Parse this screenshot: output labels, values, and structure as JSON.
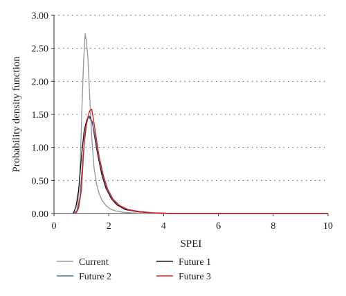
{
  "chart_data": {
    "type": "line",
    "xlabel": "SPEI",
    "ylabel": "Probability density function",
    "xlim": [
      0,
      10
    ],
    "ylim": [
      0,
      3.0
    ],
    "x_ticks": [
      "0",
      "2",
      "4",
      "6",
      "8",
      "10"
    ],
    "y_ticks": [
      "0.00",
      "0.50",
      "1.00",
      "1.50",
      "2.00",
      "2.50",
      "3.00"
    ],
    "grid": "horizontal dotted",
    "legend_position": "bottom",
    "series": [
      {
        "name": "Current",
        "color": "#9a9a9a",
        "x": [
          0.7,
          0.85,
          0.95,
          1.02,
          1.08,
          1.14,
          1.18,
          1.24,
          1.3,
          1.38,
          1.46,
          1.55,
          1.65,
          1.75,
          1.9,
          2.05,
          2.25,
          2.5,
          2.8,
          3.2,
          4.0,
          10.0
        ],
        "y": [
          0.0,
          0.05,
          0.6,
          1.6,
          2.3,
          2.72,
          2.62,
          2.35,
          1.8,
          1.15,
          0.7,
          0.45,
          0.3,
          0.2,
          0.12,
          0.07,
          0.04,
          0.02,
          0.01,
          0.005,
          0.0,
          0.0
        ]
      },
      {
        "name": "Future 1",
        "color": "#1a1a1a",
        "x": [
          0.7,
          0.8,
          0.9,
          1.0,
          1.1,
          1.2,
          1.3,
          1.4,
          1.5,
          1.6,
          1.75,
          1.9,
          2.1,
          2.3,
          2.6,
          3.0,
          3.5,
          4.2,
          10.0
        ],
        "y": [
          0.0,
          0.1,
          0.35,
          0.85,
          1.25,
          1.42,
          1.47,
          1.38,
          1.12,
          0.88,
          0.58,
          0.38,
          0.22,
          0.13,
          0.06,
          0.03,
          0.01,
          0.0,
          0.0
        ]
      },
      {
        "name": "Future 2",
        "color": "#4a6f9e",
        "x": [
          0.75,
          0.85,
          0.95,
          1.05,
          1.15,
          1.25,
          1.35,
          1.45,
          1.55,
          1.65,
          1.8,
          1.95,
          2.15,
          2.4,
          2.7,
          3.1,
          3.6,
          4.3,
          10.0
        ],
        "y": [
          0.0,
          0.05,
          0.25,
          0.8,
          1.28,
          1.46,
          1.42,
          1.28,
          1.05,
          0.82,
          0.55,
          0.36,
          0.21,
          0.12,
          0.06,
          0.03,
          0.01,
          0.0,
          0.0
        ]
      },
      {
        "name": "Future 3",
        "color": "#e02020",
        "x": [
          0.8,
          0.9,
          1.0,
          1.1,
          1.2,
          1.3,
          1.38,
          1.45,
          1.55,
          1.65,
          1.8,
          1.95,
          2.15,
          2.4,
          2.7,
          3.1,
          3.6,
          4.3,
          10.0
        ],
        "y": [
          0.0,
          0.08,
          0.35,
          1.05,
          1.4,
          1.55,
          1.58,
          1.4,
          1.12,
          0.86,
          0.58,
          0.38,
          0.22,
          0.12,
          0.06,
          0.03,
          0.01,
          0.0,
          0.0
        ]
      }
    ]
  }
}
